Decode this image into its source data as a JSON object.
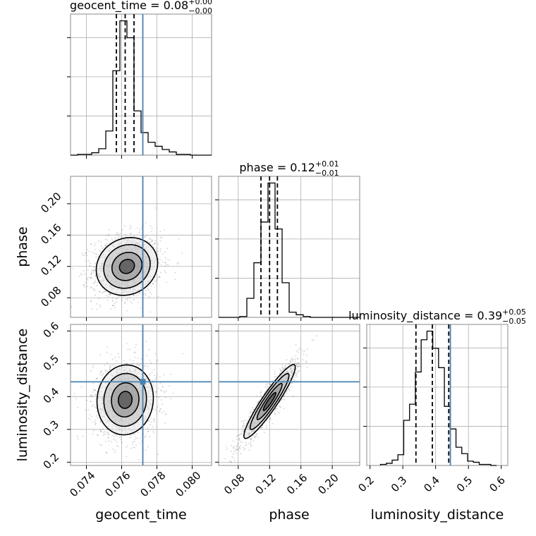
{
  "chart_data": {
    "type": "corner",
    "truth_color": "#4682b4",
    "params": [
      {
        "name": "geocent_time",
        "title": {
          "prefix": "geocent_time = ",
          "value": "0.08",
          "plus": "+0.00",
          "minus": "−0.00"
        },
        "range": [
          0.0731,
          0.0811
        ],
        "ticks": [
          0.074,
          0.076,
          0.078,
          0.08
        ],
        "tick_labels": [
          "0.074",
          "0.076",
          "0.078",
          "0.080"
        ],
        "truth": 0.0772,
        "quantiles": [
          0.0757,
          0.0762,
          0.0767
        ],
        "hist": {
          "edges": [
            0.0731,
            0.0735,
            0.0739,
            0.0743,
            0.0747,
            0.0751,
            0.0755,
            0.0759,
            0.0763,
            0.0767,
            0.0771,
            0.0775,
            0.0779,
            0.0783,
            0.0787,
            0.0791,
            0.0795,
            0.0799,
            0.0803,
            0.0807,
            0.0811
          ],
          "counts": [
            0,
            1,
            1,
            3,
            8,
            30,
            105,
            167,
            146,
            55,
            28,
            16,
            11,
            7,
            4,
            1,
            1,
            0,
            0,
            0
          ]
        }
      },
      {
        "name": "phase",
        "title": {
          "prefix": "phase = ",
          "value": "0.12",
          "plus": "+0.01",
          "minus": "−0.01"
        },
        "range": [
          0.055,
          0.235
        ],
        "ticks": [
          0.08,
          0.12,
          0.16,
          0.2
        ],
        "tick_labels": [
          "0.08",
          "0.12",
          "0.16",
          "0.20"
        ],
        "truth": null,
        "quantiles": [
          0.109,
          0.12,
          0.13
        ],
        "hist": {
          "edges": [
            0.055,
            0.064,
            0.073,
            0.082,
            0.091,
            0.1,
            0.109,
            0.118,
            0.127,
            0.136,
            0.145,
            0.154,
            0.163,
            0.172,
            0.181,
            0.19,
            0.199,
            0.208,
            0.217,
            0.226,
            0.235
          ],
          "counts": [
            0,
            0,
            0,
            1,
            22,
            63,
            110,
            155,
            102,
            40,
            6,
            3,
            1,
            0,
            0,
            0,
            0,
            0,
            0,
            0
          ]
        }
      },
      {
        "name": "luminosity_distance",
        "title": {
          "prefix": "luminosity_distance = ",
          "value": "0.39",
          "plus": "+0.05",
          "minus": "−0.05"
        },
        "range": [
          0.19,
          0.62
        ],
        "ticks": [
          0.2,
          0.3,
          0.4,
          0.5,
          0.6
        ],
        "tick_labels": [
          "0.2",
          "0.3",
          "0.4",
          "0.5",
          "0.6"
        ],
        "truth": 0.445,
        "quantiles": [
          0.34,
          0.39,
          0.44
        ],
        "hist": {
          "edges": [
            0.232,
            0.2497,
            0.2674,
            0.2851,
            0.3028,
            0.3205,
            0.3382,
            0.3559,
            0.3736,
            0.3913,
            0.409,
            0.4267,
            0.4444,
            0.4621,
            0.4798,
            0.4975,
            0.5152,
            0.5329,
            0.5506,
            0.5683,
            0.586
          ],
          "counts": [
            1,
            2,
            5,
            10,
            42,
            57,
            87,
            117,
            125,
            109,
            91,
            55,
            34,
            17,
            11,
            4,
            3,
            1,
            1,
            0
          ]
        }
      }
    ],
    "pairs": [
      {
        "x": "geocent_time",
        "y": "phase",
        "center": [
          0.0763,
          0.12
        ],
        "sigma": [
          0.00085,
          0.018
        ],
        "rho": 0.12,
        "contour_scales": [
          0.5,
          1.0,
          1.55,
          2.05
        ]
      },
      {
        "x": "geocent_time",
        "y": "luminosity_distance",
        "center": [
          0.0762,
          0.39
        ],
        "sigma": [
          0.00078,
          0.052
        ],
        "rho": 0.05,
        "contour_scales": [
          0.5,
          1.0,
          1.55,
          2.05
        ]
      },
      {
        "x": "phase",
        "y": "luminosity_distance",
        "center": [
          0.12,
          0.385
        ],
        "sigma": [
          0.016,
          0.055
        ],
        "rho": 0.93,
        "contour_scales": [
          0.5,
          1.0,
          1.55,
          2.05
        ]
      }
    ]
  }
}
